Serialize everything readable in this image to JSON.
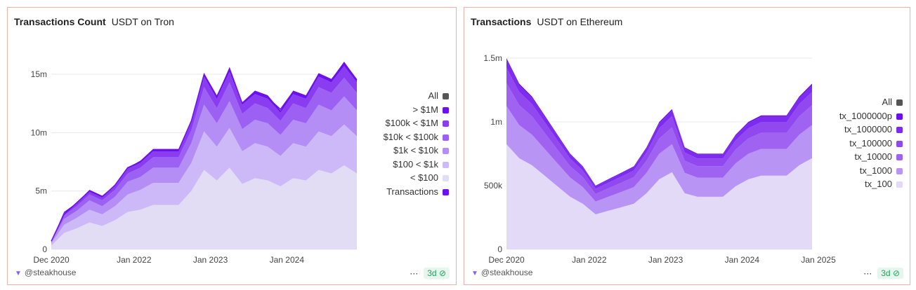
{
  "chart_data": [
    {
      "type": "area",
      "stacked": true,
      "title": "Transactions Count",
      "subtitle": "USDT on Tron",
      "x": [
        "2020-12",
        "2021-02",
        "2021-04",
        "2021-06",
        "2021-08",
        "2021-10",
        "2021-12",
        "2022-02",
        "2022-04",
        "2022-06",
        "2022-08",
        "2022-10",
        "2022-12",
        "2023-02",
        "2023-04",
        "2023-06",
        "2023-08",
        "2023-10",
        "2023-12",
        "2024-02",
        "2024-04",
        "2024-06",
        "2024-08",
        "2024-10",
        "2024-12"
      ],
      "xticks": [
        "Dec 2020",
        "Jan 2022",
        "Jan 2023",
        "Jan 2024"
      ],
      "yticks": [
        "0",
        "5m",
        "10m",
        "15m"
      ],
      "ylim": [
        0,
        18000000
      ],
      "unit": 1000000,
      "legend_all": "All",
      "legend_all_color": "#555555",
      "series": [
        {
          "name": "< $100",
          "color": "#e3dcf5",
          "values": [
            0.3,
            1.4,
            1.8,
            2.3,
            2.0,
            2.5,
            3.2,
            3.4,
            3.8,
            3.8,
            3.8,
            5.0,
            6.8,
            5.9,
            7.0,
            5.6,
            6.1,
            5.9,
            5.4,
            6.1,
            5.9,
            6.8,
            6.5,
            7.2,
            6.5
          ]
        },
        {
          "name": "$100 < $1k",
          "color": "#cdb9f7",
          "values": [
            0.2,
            0.7,
            0.9,
            1.1,
            1.0,
            1.2,
            1.5,
            1.7,
            1.9,
            1.9,
            1.9,
            2.4,
            3.3,
            2.9,
            3.4,
            2.8,
            3.0,
            2.9,
            2.6,
            3.0,
            2.9,
            3.3,
            3.2,
            3.5,
            3.2
          ]
        },
        {
          "name": "$1k < $10k",
          "color": "#b48df5",
          "values": [
            0.1,
            0.5,
            0.6,
            0.8,
            0.7,
            0.8,
            1.1,
            1.1,
            1.3,
            1.3,
            1.3,
            1.7,
            2.3,
            2.0,
            2.3,
            1.9,
            2.0,
            2.0,
            1.8,
            2.0,
            2.0,
            2.3,
            2.2,
            2.4,
            2.2
          ]
        },
        {
          "name": "$10k < $100k",
          "color": "#9c61f2",
          "values": [
            0.1,
            0.3,
            0.4,
            0.5,
            0.5,
            0.6,
            0.7,
            0.8,
            0.9,
            0.9,
            0.9,
            1.1,
            1.5,
            1.3,
            1.6,
            1.3,
            1.4,
            1.3,
            1.2,
            1.4,
            1.3,
            1.5,
            1.5,
            1.6,
            1.5
          ]
        },
        {
          "name": "$100k < $1M",
          "color": "#8a3cf0",
          "values": [
            0.0,
            0.2,
            0.2,
            0.3,
            0.3,
            0.3,
            0.4,
            0.4,
            0.5,
            0.5,
            0.5,
            0.7,
            0.9,
            0.8,
            0.9,
            0.8,
            0.8,
            0.8,
            0.7,
            0.8,
            0.8,
            0.9,
            0.9,
            1.0,
            0.9
          ]
        },
        {
          "name": "> $1M",
          "color": "#6d10ef",
          "values": [
            0.0,
            0.1,
            0.1,
            0.1,
            0.1,
            0.1,
            0.1,
            0.2,
            0.2,
            0.2,
            0.2,
            0.2,
            0.3,
            0.3,
            0.3,
            0.2,
            0.3,
            0.3,
            0.2,
            0.3,
            0.3,
            0.3,
            0.3,
            0.3,
            0.3
          ]
        }
      ],
      "line": {
        "name": "Transactions",
        "color": "#6d10ef",
        "values": [
          0.7,
          3,
          4,
          5,
          4.5,
          5.5,
          7,
          7.5,
          8.5,
          8.5,
          8.5,
          11,
          15,
          13,
          15.5,
          12.5,
          13.5,
          13,
          12,
          13.5,
          13,
          15,
          14.5,
          16,
          14.5
        ]
      }
    },
    {
      "type": "area",
      "stacked": true,
      "title": "Transactions",
      "subtitle": "USDT on Ethereum",
      "x": [
        "2020-12",
        "2021-02",
        "2021-04",
        "2021-06",
        "2021-08",
        "2021-10",
        "2021-12",
        "2022-02",
        "2022-04",
        "2022-06",
        "2022-08",
        "2022-10",
        "2022-12",
        "2023-02",
        "2023-04",
        "2023-06",
        "2023-08",
        "2023-10",
        "2023-12",
        "2024-02",
        "2024-04",
        "2024-06",
        "2024-08",
        "2024-10",
        "2024-12"
      ],
      "xticks": [
        "Dec 2020",
        "Jan 2022",
        "Jan 2023",
        "Jan 2024",
        "Jan 2025"
      ],
      "yticks": [
        "0",
        "500k",
        "1m",
        "1.5m"
      ],
      "ylim": [
        0,
        1650000
      ],
      "unit": 1000,
      "legend_all": "All",
      "legend_all_color": "#555555",
      "series": [
        {
          "name": "tx_100",
          "color": "#e2daf6",
          "values": [
            825,
            715,
            660,
            578,
            495,
            413,
            358,
            275,
            303,
            330,
            358,
            440,
            550,
            605,
            440,
            413,
            413,
            413,
            495,
            550,
            578,
            578,
            578,
            660,
            715
          ]
        },
        {
          "name": "tx_1000",
          "color": "#b894f5",
          "values": [
            300,
            260,
            240,
            210,
            180,
            150,
            130,
            100,
            110,
            120,
            130,
            160,
            200,
            220,
            160,
            150,
            150,
            150,
            180,
            200,
            210,
            210,
            210,
            240,
            260
          ]
        },
        {
          "name": "tx_10000",
          "color": "#a062f1",
          "values": [
            180,
            156,
            144,
            126,
            108,
            90,
            78,
            60,
            66,
            72,
            78,
            96,
            120,
            132,
            96,
            90,
            90,
            90,
            108,
            120,
            126,
            126,
            126,
            144,
            156
          ]
        },
        {
          "name": "tx_100000",
          "color": "#9148ef",
          "values": [
            120,
            104,
            96,
            84,
            72,
            60,
            52,
            40,
            44,
            48,
            52,
            64,
            80,
            88,
            64,
            60,
            60,
            60,
            72,
            80,
            84,
            84,
            84,
            96,
            104
          ]
        },
        {
          "name": "tx_1000000",
          "color": "#7e2bf0",
          "values": [
            60,
            52,
            48,
            42,
            36,
            30,
            26,
            20,
            22,
            24,
            26,
            32,
            40,
            44,
            32,
            30,
            30,
            30,
            36,
            40,
            42,
            42,
            42,
            48,
            52
          ]
        },
        {
          "name": "tx_1000000p",
          "color": "#6a0fef",
          "values": [
            15,
            13,
            12,
            11,
            9,
            8,
            7,
            5,
            6,
            6,
            7,
            8,
            10,
            11,
            8,
            8,
            8,
            8,
            9,
            10,
            11,
            11,
            11,
            12,
            13
          ]
        }
      ]
    }
  ],
  "footer": {
    "author": "@steakhouse",
    "more": "···",
    "age": "3d"
  }
}
